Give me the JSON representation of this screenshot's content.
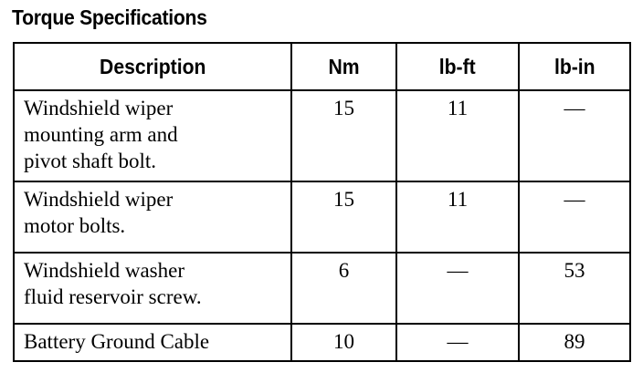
{
  "title": "Torque Specifications",
  "table": {
    "headers": [
      "Description",
      "Nm",
      "lb-ft",
      "lb-in"
    ],
    "rows": [
      {
        "description": [
          "Windshield wiper",
          "mounting arm and",
          "pivot shaft bolt."
        ],
        "nm": "15",
        "lbft": "11",
        "lbin": "—"
      },
      {
        "description": [
          "Windshield wiper",
          "motor bolts."
        ],
        "nm": "15",
        "lbft": "11",
        "lbin": "—"
      },
      {
        "description": [
          "Windshield washer",
          "fluid reservoir screw."
        ],
        "nm": "6",
        "lbft": "—",
        "lbin": "53"
      },
      {
        "description": [
          "Battery Ground Cable"
        ],
        "nm": "10",
        "lbft": "—",
        "lbin": "89"
      }
    ]
  }
}
